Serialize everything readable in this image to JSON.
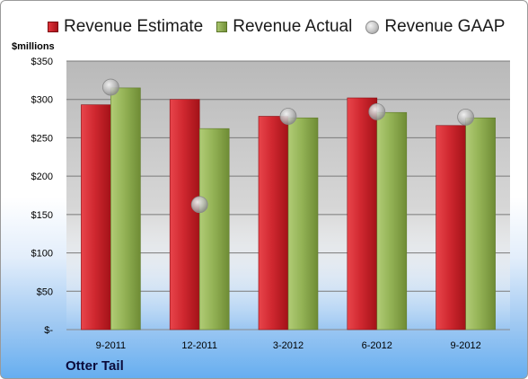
{
  "chart_data": {
    "type": "bar",
    "categories": [
      "9-2011",
      "12-2011",
      "3-2012",
      "6-2012",
      "9-2012"
    ],
    "series": [
      {
        "name": "Revenue Estimate",
        "type": "bar",
        "color": "#c8202a",
        "values": [
          293,
          300,
          278,
          302,
          266
        ]
      },
      {
        "name": "Revenue Actual",
        "type": "bar",
        "color": "#8aab4a",
        "values": [
          315,
          262,
          276,
          283,
          276
        ]
      },
      {
        "name": "Revenue GAAP",
        "type": "scatter",
        "color": "#b4b4b4",
        "values": [
          316,
          163,
          278,
          284,
          277
        ]
      }
    ],
    "ylabel": "$millions",
    "ylim": [
      0,
      350
    ],
    "yticks": [
      0,
      50,
      100,
      150,
      200,
      250,
      300,
      350
    ],
    "ytick_labels": [
      "$-",
      "$50",
      "$100",
      "$150",
      "$200",
      "$250",
      "$300",
      "$350"
    ],
    "grid": true,
    "legend_position": "top"
  },
  "footer": {
    "company": "Otter Tail"
  }
}
